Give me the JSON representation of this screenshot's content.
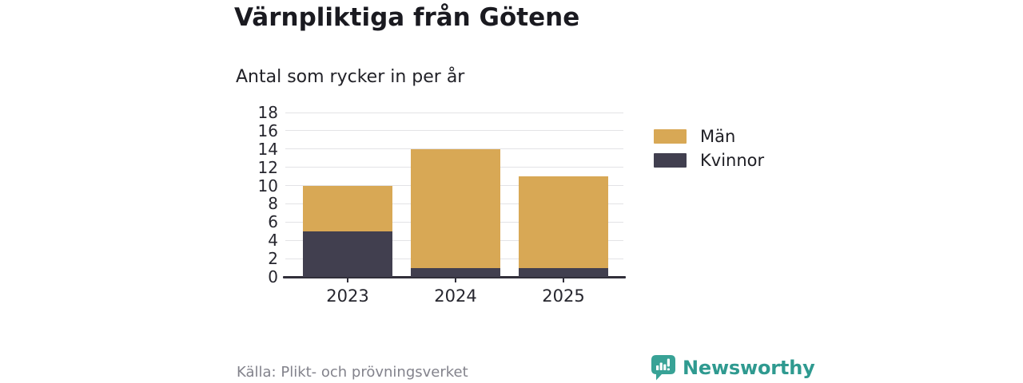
{
  "title": "Värnpliktiga från Götene",
  "subtitle": "Antal som rycker in per år",
  "chart_data": {
    "type": "bar",
    "stacked": true,
    "categories": [
      "2023",
      "2024",
      "2025"
    ],
    "series": [
      {
        "name": "Män",
        "color": "#d8a855",
        "values": [
          5,
          13,
          10
        ]
      },
      {
        "name": "Kvinnor",
        "color": "#413f4f",
        "values": [
          5,
          1,
          1
        ]
      }
    ],
    "totals": [
      10,
      14,
      11
    ],
    "ylabel": "",
    "xlabel": "",
    "ylim": [
      0,
      18
    ],
    "yticks": [
      0,
      2,
      4,
      6,
      8,
      10,
      12,
      14,
      16,
      18
    ],
    "grid": "horizontal",
    "legend_position": "right"
  },
  "legend": {
    "items": [
      {
        "label": "Män",
        "color": "#d8a855"
      },
      {
        "label": "Kvinnor",
        "color": "#413f4f"
      }
    ]
  },
  "footer": {
    "source": "Källa: Plikt- och prövningsverket",
    "brand": "Newsworthy",
    "brand_color": "#2f9a90",
    "brand_icon": "speech-bubble-bar-chart",
    "brand_icon_color": "#38a296"
  }
}
